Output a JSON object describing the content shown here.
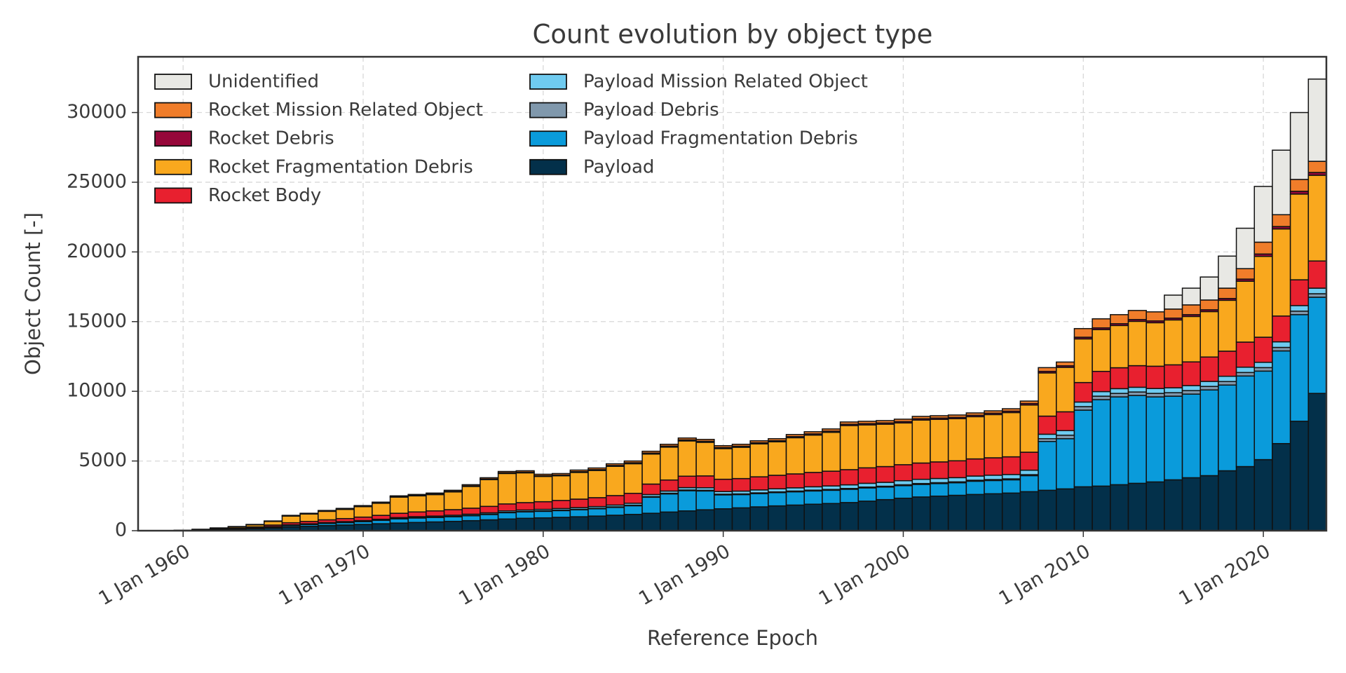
{
  "chart_data": {
    "type": "stacked_bar",
    "title": "Count evolution by object type",
    "xlabel": "Reference Epoch",
    "ylabel": "Object Count [-]",
    "x": [
      1958,
      1959,
      1960,
      1961,
      1962,
      1963,
      1964,
      1965,
      1966,
      1967,
      1968,
      1969,
      1970,
      1971,
      1972,
      1973,
      1974,
      1975,
      1976,
      1977,
      1978,
      1979,
      1980,
      1981,
      1982,
      1983,
      1984,
      1985,
      1986,
      1987,
      1988,
      1989,
      1990,
      1991,
      1992,
      1993,
      1994,
      1995,
      1996,
      1997,
      1998,
      1999,
      2000,
      2001,
      2002,
      2003,
      2004,
      2005,
      2006,
      2007,
      2008,
      2009,
      2010,
      2011,
      2012,
      2013,
      2014,
      2015,
      2016,
      2017,
      2018,
      2019,
      2020,
      2021,
      2022,
      2023
    ],
    "xlim": [
      1957.5,
      2023.5
    ],
    "xticks": [
      {
        "value": 1960,
        "label": "1 Jan 1960"
      },
      {
        "value": 1970,
        "label": "1 Jan 1970"
      },
      {
        "value": 1980,
        "label": "1 Jan 1980"
      },
      {
        "value": 1990,
        "label": "1 Jan 1990"
      },
      {
        "value": 2000,
        "label": "1 Jan 2000"
      },
      {
        "value": 2010,
        "label": "1 Jan 2010"
      },
      {
        "value": 2020,
        "label": "1 Jan 2020"
      }
    ],
    "ylim": [
      0,
      34000
    ],
    "yticks": [
      0,
      5000,
      10000,
      15000,
      20000,
      25000,
      30000
    ],
    "grid": true,
    "legend": "upper left",
    "series": [
      {
        "name": "Payload",
        "color": "#03304a",
        "values": [
          2,
          5,
          15,
          40,
          70,
          100,
          140,
          200,
          270,
          320,
          370,
          410,
          450,
          500,
          550,
          590,
          630,
          670,
          720,
          780,
          840,
          890,
          920,
          960,
          1000,
          1050,
          1110,
          1170,
          1250,
          1340,
          1420,
          1500,
          1570,
          1640,
          1710,
          1780,
          1840,
          1900,
          1950,
          2020,
          2120,
          2230,
          2330,
          2420,
          2480,
          2540,
          2600,
          2650,
          2700,
          2800,
          2900,
          3000,
          3150,
          3200,
          3300,
          3400,
          3500,
          3650,
          3800,
          3950,
          4300,
          4600,
          5100,
          6250,
          7850,
          9850
        ]
      },
      {
        "name": "Payload Fragmentation Debris",
        "color": "#0a9bdb",
        "values": [
          0,
          0,
          0,
          5,
          10,
          20,
          30,
          60,
          100,
          120,
          150,
          170,
          200,
          240,
          300,
          320,
          320,
          330,
          350,
          380,
          450,
          460,
          470,
          480,
          500,
          520,
          560,
          620,
          1150,
          1300,
          1450,
          1350,
          1000,
          950,
          950,
          950,
          950,
          950,
          950,
          950,
          950,
          900,
          900,
          900,
          900,
          900,
          950,
          950,
          950,
          1150,
          3500,
          3600,
          5500,
          6200,
          6300,
          6300,
          6100,
          6000,
          6000,
          6150,
          6150,
          6500,
          6350,
          6650,
          7650,
          6900
        ]
      },
      {
        "name": "Payload Debris",
        "color": "#8098ac",
        "values": [
          0,
          0,
          0,
          0,
          0,
          0,
          5,
          5,
          10,
          10,
          10,
          15,
          15,
          15,
          20,
          20,
          20,
          25,
          25,
          30,
          30,
          30,
          30,
          35,
          35,
          35,
          40,
          40,
          45,
          45,
          50,
          50,
          50,
          50,
          55,
          55,
          55,
          60,
          60,
          60,
          60,
          60,
          65,
          65,
          65,
          65,
          70,
          70,
          70,
          70,
          200,
          250,
          250,
          250,
          250,
          250,
          250,
          250,
          250,
          250,
          250,
          250,
          250,
          250,
          250,
          250
        ]
      },
      {
        "name": "Payload Mission Related Object",
        "color": "#6fcbf0",
        "values": [
          0,
          0,
          2,
          5,
          10,
          15,
          20,
          30,
          40,
          45,
          50,
          55,
          60,
          65,
          70,
          75,
          80,
          85,
          90,
          95,
          100,
          105,
          110,
          115,
          120,
          125,
          130,
          140,
          150,
          160,
          170,
          180,
          190,
          200,
          210,
          220,
          230,
          240,
          250,
          260,
          270,
          280,
          290,
          300,
          300,
          300,
          300,
          310,
          310,
          320,
          320,
          330,
          330,
          330,
          340,
          340,
          350,
          350,
          360,
          360,
          380,
          380,
          380,
          400,
          400,
          400
        ]
      },
      {
        "name": "Rocket Body",
        "color": "#e8202f",
        "values": [
          1,
          3,
          10,
          25,
          45,
          60,
          80,
          110,
          150,
          170,
          200,
          220,
          250,
          280,
          310,
          340,
          370,
          400,
          430,
          460,
          500,
          530,
          550,
          580,
          610,
          640,
          680,
          710,
          750,
          790,
          820,
          850,
          880,
          900,
          940,
          970,
          1000,
          1030,
          1060,
          1090,
          1110,
          1130,
          1150,
          1170,
          1190,
          1210,
          1230,
          1250,
          1270,
          1290,
          1300,
          1350,
          1400,
          1450,
          1500,
          1550,
          1600,
          1650,
          1700,
          1750,
          1800,
          1800,
          1800,
          1850,
          1850,
          1950
        ]
      },
      {
        "name": "Rocket Fragmentation Debris",
        "color": "#f9a81e",
        "values": [
          0,
          0,
          0,
          20,
          55,
          90,
          150,
          260,
          480,
          530,
          610,
          660,
          750,
          870,
          1160,
          1155,
          1170,
          1270,
          1560,
          1920,
          2185,
          2135,
          1815,
          1770,
          1915,
          1950,
          2095,
          2125,
          2155,
          2360,
          2530,
          2410,
          2200,
          2245,
          2365,
          2400,
          2595,
          2680,
          2785,
          3165,
          3080,
          3040,
          2995,
          3080,
          3050,
          3020,
          3030,
          3100,
          3175,
          3385,
          3100,
          3190,
          3130,
          3000,
          3030,
          3180,
          3120,
          3220,
          3260,
          3260,
          3650,
          4370,
          5800,
          6250,
          6150,
          6150
        ]
      },
      {
        "name": "Rocket Debris",
        "color": "#96073a",
        "values": [
          0,
          0,
          0,
          0,
          0,
          0,
          5,
          10,
          15,
          15,
          20,
          20,
          20,
          20,
          25,
          30,
          35,
          40,
          40,
          45,
          50,
          50,
          50,
          50,
          55,
          60,
          65,
          70,
          70,
          75,
          75,
          75,
          75,
          75,
          80,
          80,
          80,
          85,
          85,
          90,
          90,
          90,
          95,
          95,
          95,
          95,
          100,
          100,
          100,
          110,
          110,
          110,
          120,
          120,
          130,
          130,
          130,
          130,
          130,
          130,
          130,
          150,
          170,
          170,
          200,
          200
        ]
      },
      {
        "name": "Rocket Mission Related Object",
        "color": "#f07d2a",
        "values": [
          0,
          0,
          2,
          5,
          10,
          15,
          20,
          25,
          35,
          40,
          40,
          50,
          55,
          60,
          65,
          70,
          75,
          80,
          85,
          90,
          95,
          100,
          105,
          110,
          115,
          120,
          120,
          125,
          130,
          130,
          135,
          135,
          135,
          140,
          140,
          145,
          150,
          155,
          160,
          165,
          170,
          170,
          175,
          170,
          170,
          170,
          170,
          170,
          175,
          175,
          270,
          270,
          620,
          650,
          650,
          650,
          650,
          650,
          700,
          700,
          740,
          750,
          850,
          850,
          850,
          800
        ]
      },
      {
        "name": "Unidentified",
        "color": "#e8e8e4",
        "values": [
          0,
          0,
          0,
          0,
          0,
          0,
          0,
          0,
          0,
          0,
          0,
          0,
          0,
          0,
          0,
          0,
          0,
          0,
          0,
          0,
          0,
          0,
          0,
          0,
          0,
          0,
          0,
          0,
          0,
          0,
          0,
          0,
          0,
          0,
          0,
          0,
          0,
          0,
          0,
          0,
          0,
          0,
          0,
          0,
          0,
          0,
          0,
          0,
          0,
          0,
          0,
          0,
          0,
          0,
          0,
          0,
          0,
          1000,
          1200,
          1650,
          2300,
          2900,
          4000,
          4630,
          4800,
          5900
        ]
      }
    ]
  }
}
